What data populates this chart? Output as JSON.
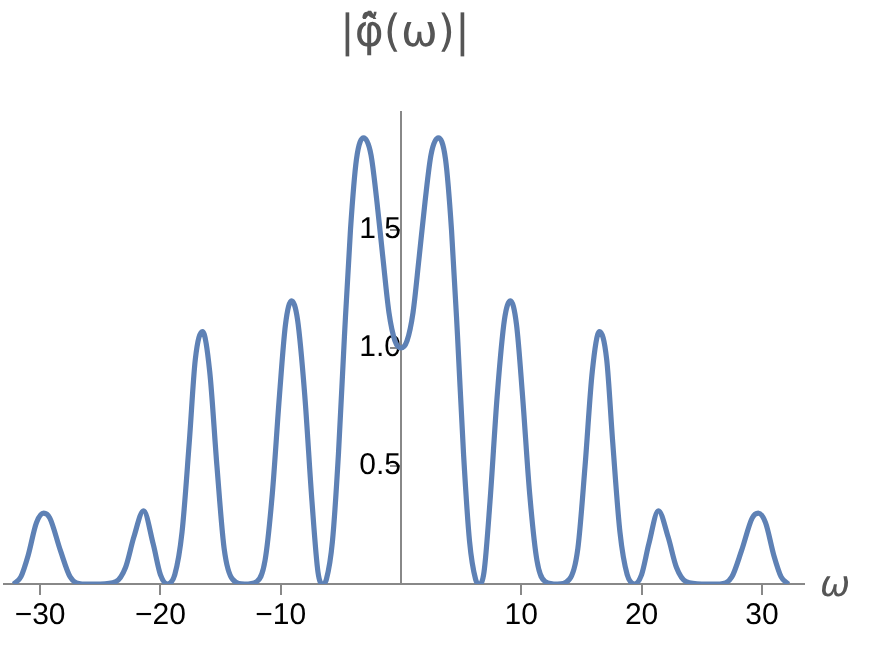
{
  "chart_data": {
    "type": "line",
    "xlabel": "ω",
    "ylabel": "|φ̃̂(ω)|",
    "xlim": [
      -33,
      33.5
    ],
    "ylim": [
      0,
      2
    ],
    "xticks": [
      {
        "value": -30,
        "label": "−30"
      },
      {
        "value": -20,
        "label": "−20"
      },
      {
        "value": -10,
        "label": "−10"
      },
      10,
      20,
      30
    ],
    "yticks": [
      0.5,
      {
        "value": 1,
        "label": "1.0"
      },
      1.5
    ],
    "grid": false,
    "legend": false,
    "marker": "none",
    "line_style": "solid",
    "series": [
      {
        "color": "#5e81b5",
        "x": [
          -32.2,
          -31.6,
          -31,
          -30.3,
          -29.7,
          -29.2,
          -28.3,
          -27.5,
          -26.5,
          -25,
          -23.7,
          -22.9,
          -22.2,
          -21.4,
          -20.6,
          -20,
          -19.4,
          -18.8,
          -18.2,
          -17.6,
          -17.1,
          -16.5,
          -15.9,
          -15.3,
          -14.7,
          -14,
          -13,
          -12,
          -11.3,
          -10.7,
          -10.1,
          -9.6,
          -9.1,
          -8.6,
          -8,
          -7.4,
          -6.9,
          -6.5,
          -6.2,
          -5.7,
          -5.2,
          -4.7,
          -4.2,
          -3.7,
          -3.1,
          -2.5,
          -2,
          -1.5,
          -1,
          -0.5,
          0,
          0.5,
          1,
          1.5,
          2,
          2.5,
          3.1,
          3.7,
          4.2,
          4.7,
          5.2,
          5.7,
          6.2,
          6.5,
          6.9,
          7.4,
          8,
          8.6,
          9.1,
          9.6,
          10.1,
          10.7,
          11.3,
          12,
          13,
          14,
          14.7,
          15.3,
          15.9,
          16.5,
          17.1,
          17.6,
          18.2,
          18.8,
          19.4,
          20,
          20.6,
          21.4,
          22.2,
          22.9,
          23.7,
          25,
          26.5,
          27.5,
          28.3,
          29.2,
          29.7,
          30.3,
          31,
          31.6,
          32.2
        ],
        "values": [
          0,
          0.03,
          0.12,
          0.26,
          0.3,
          0.28,
          0.14,
          0.03,
          0,
          0,
          0.01,
          0.07,
          0.2,
          0.31,
          0.17,
          0.04,
          0,
          0.04,
          0.22,
          0.6,
          0.95,
          1.07,
          0.9,
          0.5,
          0.15,
          0.02,
          0,
          0.01,
          0.1,
          0.38,
          0.8,
          1.1,
          1.2,
          1.12,
          0.8,
          0.35,
          0.05,
          0,
          0.02,
          0.18,
          0.55,
          1.05,
          1.5,
          1.8,
          1.89,
          1.82,
          1.62,
          1.38,
          1.15,
          1.03,
          1,
          1.03,
          1.15,
          1.38,
          1.62,
          1.82,
          1.89,
          1.8,
          1.5,
          1.05,
          0.55,
          0.18,
          0.02,
          0,
          0.05,
          0.35,
          0.8,
          1.12,
          1.2,
          1.1,
          0.8,
          0.38,
          0.1,
          0.01,
          0,
          0.02,
          0.15,
          0.5,
          0.9,
          1.07,
          0.95,
          0.6,
          0.22,
          0.04,
          0,
          0.04,
          0.17,
          0.31,
          0.2,
          0.07,
          0.01,
          0,
          0,
          0.03,
          0.14,
          0.28,
          0.3,
          0.26,
          0.12,
          0.03,
          0
        ]
      }
    ]
  }
}
